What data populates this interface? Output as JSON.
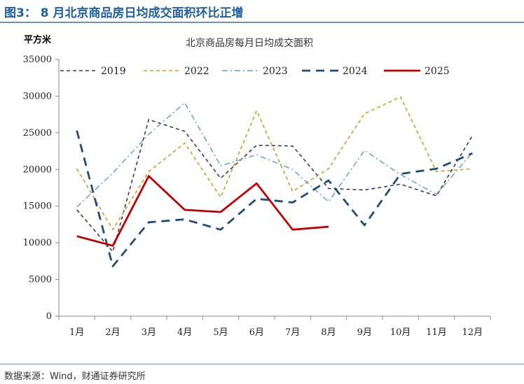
{
  "figure_title": "图3： 8 月北京商品房日均成交面积环比正增",
  "unit_label": "平方米",
  "source": "数据来源：Wind，财通证券研究所",
  "chart_data": {
    "type": "line",
    "title": "北京商品房每月日均成交面积",
    "xlabel": "",
    "ylabel": "平方米",
    "ylim": [
      0,
      35000
    ],
    "yticks": [
      0,
      5000,
      10000,
      15000,
      20000,
      25000,
      30000,
      35000
    ],
    "categories": [
      "1月",
      "2月",
      "3月",
      "4月",
      "5月",
      "6月",
      "7月",
      "8月",
      "9月",
      "10月",
      "11月",
      "12月"
    ],
    "legend_position": "top",
    "grid": false,
    "series": [
      {
        "name": "2019",
        "color": "#3a3a5c",
        "style": "dash",
        "values": [
          14500,
          8800,
          26800,
          25200,
          18800,
          23300,
          23200,
          17400,
          17200,
          18000,
          16400,
          24600
        ]
      },
      {
        "name": "2022",
        "color": "#c9a227",
        "style": "dash",
        "values": [
          20100,
          11800,
          19700,
          23600,
          16200,
          28000,
          17000,
          20100,
          27600,
          29900,
          19700,
          20100
        ]
      },
      {
        "name": "2023",
        "color": "#5b9bd5",
        "style": "dashdot",
        "values": [
          14900,
          19500,
          24800,
          29100,
          20500,
          22000,
          20000,
          15600,
          22600,
          19300,
          16600,
          22300
        ]
      },
      {
        "name": "2024",
        "color": "#1f4e79",
        "style": "longdash",
        "values": [
          25300,
          6800,
          12800,
          13200,
          11800,
          16000,
          15500,
          18500,
          12400,
          19400,
          20100,
          22200
        ]
      },
      {
        "name": "2025",
        "color": "#c00000",
        "style": "solid",
        "values": [
          10900,
          9600,
          19100,
          14500,
          14200,
          18100,
          11800,
          12200,
          null,
          null,
          null,
          null
        ]
      }
    ]
  }
}
